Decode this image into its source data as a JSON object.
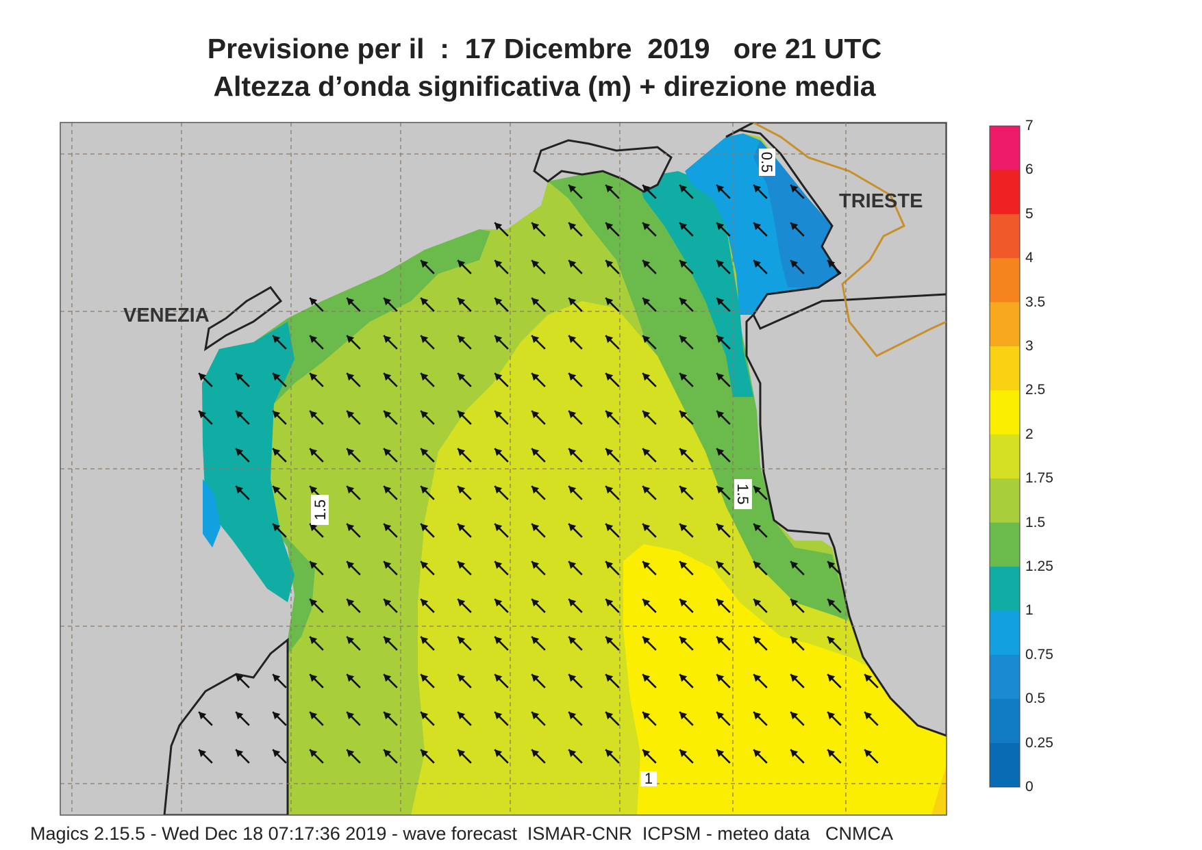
{
  "title": {
    "line1": "Previsione per il  :  17 Dicembre  2019   ore 21 UTC",
    "line2": "Altezza d’onda significativa (m) + direzione media"
  },
  "map": {
    "cities": [
      {
        "name": "VENEZIA"
      },
      {
        "name": "TRIESTE"
      }
    ],
    "contour_labels": [
      "1.5",
      "1.5",
      "0.5",
      "1"
    ],
    "arrow_direction": "north-west",
    "land_color": "#c8c8c8",
    "coastline_color": "#222222",
    "border_color": "#c8902a"
  },
  "colorbar": {
    "levels": [
      "7",
      "6",
      "5",
      "4",
      "3.5",
      "3",
      "2.5",
      "2",
      "1.75",
      "1.5",
      "1.25",
      "1",
      "0.75",
      "0.5",
      "0.25",
      "0"
    ],
    "colors": [
      "#ee1a6a",
      "#ee2222",
      "#f0592a",
      "#f5841f",
      "#f7a81c",
      "#fbd114",
      "#fcee00",
      "#d4e021",
      "#a8cf3a",
      "#6bbb4c",
      "#10ada5",
      "#12a0e0",
      "#1a8ad2",
      "#117cc4",
      "#0a6bb5"
    ]
  },
  "footer": "Magics 2.15.5 - Wed Dec 18 07:17:36 2019 - wave forecast  ISMAR-CNR  ICPSM - meteo data   CNMCA"
}
